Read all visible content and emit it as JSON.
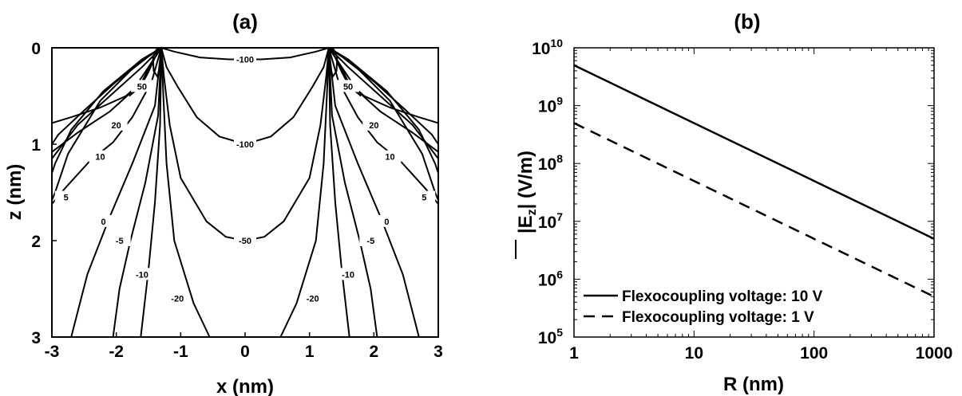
{
  "chart_data": [
    {
      "panel": "(a)",
      "type": "contour",
      "title": "(a)",
      "xlabel": "x (nm)",
      "ylabel": "z (nm)",
      "xlim": [
        -3,
        3
      ],
      "ylim": [
        0,
        3
      ],
      "y_axis_inverted": true,
      "xticks": [
        -3,
        -2,
        -1,
        0,
        1,
        2,
        3
      ],
      "yticks": [
        0,
        1,
        2,
        3
      ],
      "contour_levels": [
        -100,
        -50,
        -20,
        -10,
        -5,
        0,
        5,
        10,
        20,
        50
      ],
      "contour_labels": [
        {
          "text": "-100",
          "x": 0.0,
          "y": 0.12
        },
        {
          "text": "-100",
          "x": 0.0,
          "y": 1.0
        },
        {
          "text": "-50",
          "x": 0.0,
          "y": 2.0
        },
        {
          "text": "-20",
          "x": -1.05,
          "y": 2.6
        },
        {
          "text": "-20",
          "x": 1.05,
          "y": 2.6
        },
        {
          "text": "-10",
          "x": -1.6,
          "y": 2.35
        },
        {
          "text": "-10",
          "x": 1.6,
          "y": 2.35
        },
        {
          "text": "-5",
          "x": -1.95,
          "y": 2.0
        },
        {
          "text": "-5",
          "x": 1.95,
          "y": 2.0
        },
        {
          "text": "0",
          "x": -2.2,
          "y": 1.8
        },
        {
          "text": "0",
          "x": 2.2,
          "y": 1.8
        },
        {
          "text": "5",
          "x": -2.78,
          "y": 1.55
        },
        {
          "text": "5",
          "x": 2.78,
          "y": 1.55
        },
        {
          "text": "10",
          "x": -2.25,
          "y": 1.13
        },
        {
          "text": "10",
          "x": 2.25,
          "y": 1.13
        },
        {
          "text": "20",
          "x": -2.0,
          "y": 0.8
        },
        {
          "text": "20",
          "x": 2.0,
          "y": 0.8
        },
        {
          "text": "50",
          "x": -1.6,
          "y": 0.4
        },
        {
          "text": "50",
          "x": 1.6,
          "y": 0.4
        }
      ]
    },
    {
      "panel": "(b)",
      "type": "line",
      "title": "(b)",
      "xlabel": "R (nm)",
      "ylabel": "|Ez| (V/m)",
      "xscale": "log",
      "yscale": "log",
      "xlim": [
        1,
        1000
      ],
      "ylim": [
        100000,
        10000000000
      ],
      "xticks": [
        "1",
        "10",
        "100",
        "1000"
      ],
      "yticks": [
        "10",
        "10",
        "10",
        "10",
        "10",
        "10"
      ],
      "ytick_exponents": [
        "5",
        "6",
        "7",
        "8",
        "9",
        "10"
      ],
      "legend_position": "bottom-left",
      "series": [
        {
          "name": "Flexocoupling voltage: 10 V",
          "style": "solid",
          "x": [
            1,
            10,
            100,
            1000
          ],
          "y": [
            5000000000,
            500000000,
            50000000,
            5000000
          ]
        },
        {
          "name": "Flexocoupling voltage: 1 V",
          "style": "dashed",
          "x": [
            1,
            10,
            100,
            1000
          ],
          "y": [
            500000000,
            50000000,
            5000000,
            500000
          ]
        }
      ]
    }
  ]
}
